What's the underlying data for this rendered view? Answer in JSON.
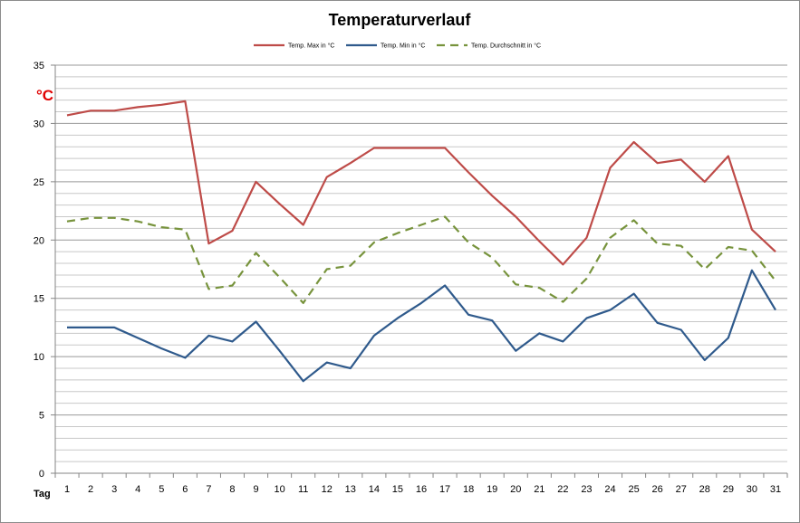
{
  "chart_data": {
    "type": "line",
    "title": "Temperaturverlauf",
    "xlabel": "Tag",
    "ylabel": "°C",
    "ylim": [
      0,
      35
    ],
    "ytick_step": 5,
    "minor_grid_step": 1,
    "grid": true,
    "legend_position": "top",
    "x": [
      1,
      2,
      3,
      4,
      5,
      6,
      7,
      8,
      9,
      10,
      11,
      12,
      13,
      14,
      15,
      16,
      17,
      18,
      19,
      20,
      21,
      22,
      23,
      24,
      25,
      26,
      27,
      28,
      29,
      30,
      31
    ],
    "series": [
      {
        "name": "Temp. Max in °C",
        "color": "#be4b48",
        "dash": false,
        "values": [
          30.7,
          31.1,
          31.1,
          31.4,
          31.6,
          31.9,
          19.7,
          20.8,
          25.0,
          23.1,
          21.3,
          25.4,
          26.6,
          27.9,
          27.9,
          27.9,
          27.9,
          25.8,
          23.8,
          22.0,
          19.9,
          17.9,
          20.2,
          26.2,
          28.4,
          26.6,
          26.9,
          25.0,
          27.2,
          20.9,
          19.0
        ]
      },
      {
        "name": "Temp. Min in °C",
        "color": "#2f5a8c",
        "dash": false,
        "values": [
          12.5,
          12.5,
          12.5,
          11.6,
          10.7,
          9.9,
          11.8,
          11.3,
          13.0,
          10.5,
          7.9,
          9.5,
          9.0,
          11.8,
          13.3,
          14.6,
          16.1,
          13.6,
          13.1,
          10.5,
          12.0,
          11.3,
          13.3,
          14.0,
          15.4,
          12.9,
          12.3,
          9.7,
          11.6,
          17.4,
          14.0
        ]
      },
      {
        "name": "Temp. Durchschnitt in °C",
        "color": "#77933c",
        "dash": true,
        "values": [
          21.6,
          21.9,
          21.9,
          21.6,
          21.1,
          20.9,
          15.8,
          16.1,
          18.9,
          16.8,
          14.6,
          17.5,
          17.8,
          19.8,
          20.6,
          21.3,
          22.0,
          19.8,
          18.5,
          16.2,
          15.9,
          14.7,
          16.7,
          20.2,
          21.7,
          19.7,
          19.5,
          17.5,
          19.4,
          19.1,
          16.5
        ]
      }
    ]
  }
}
